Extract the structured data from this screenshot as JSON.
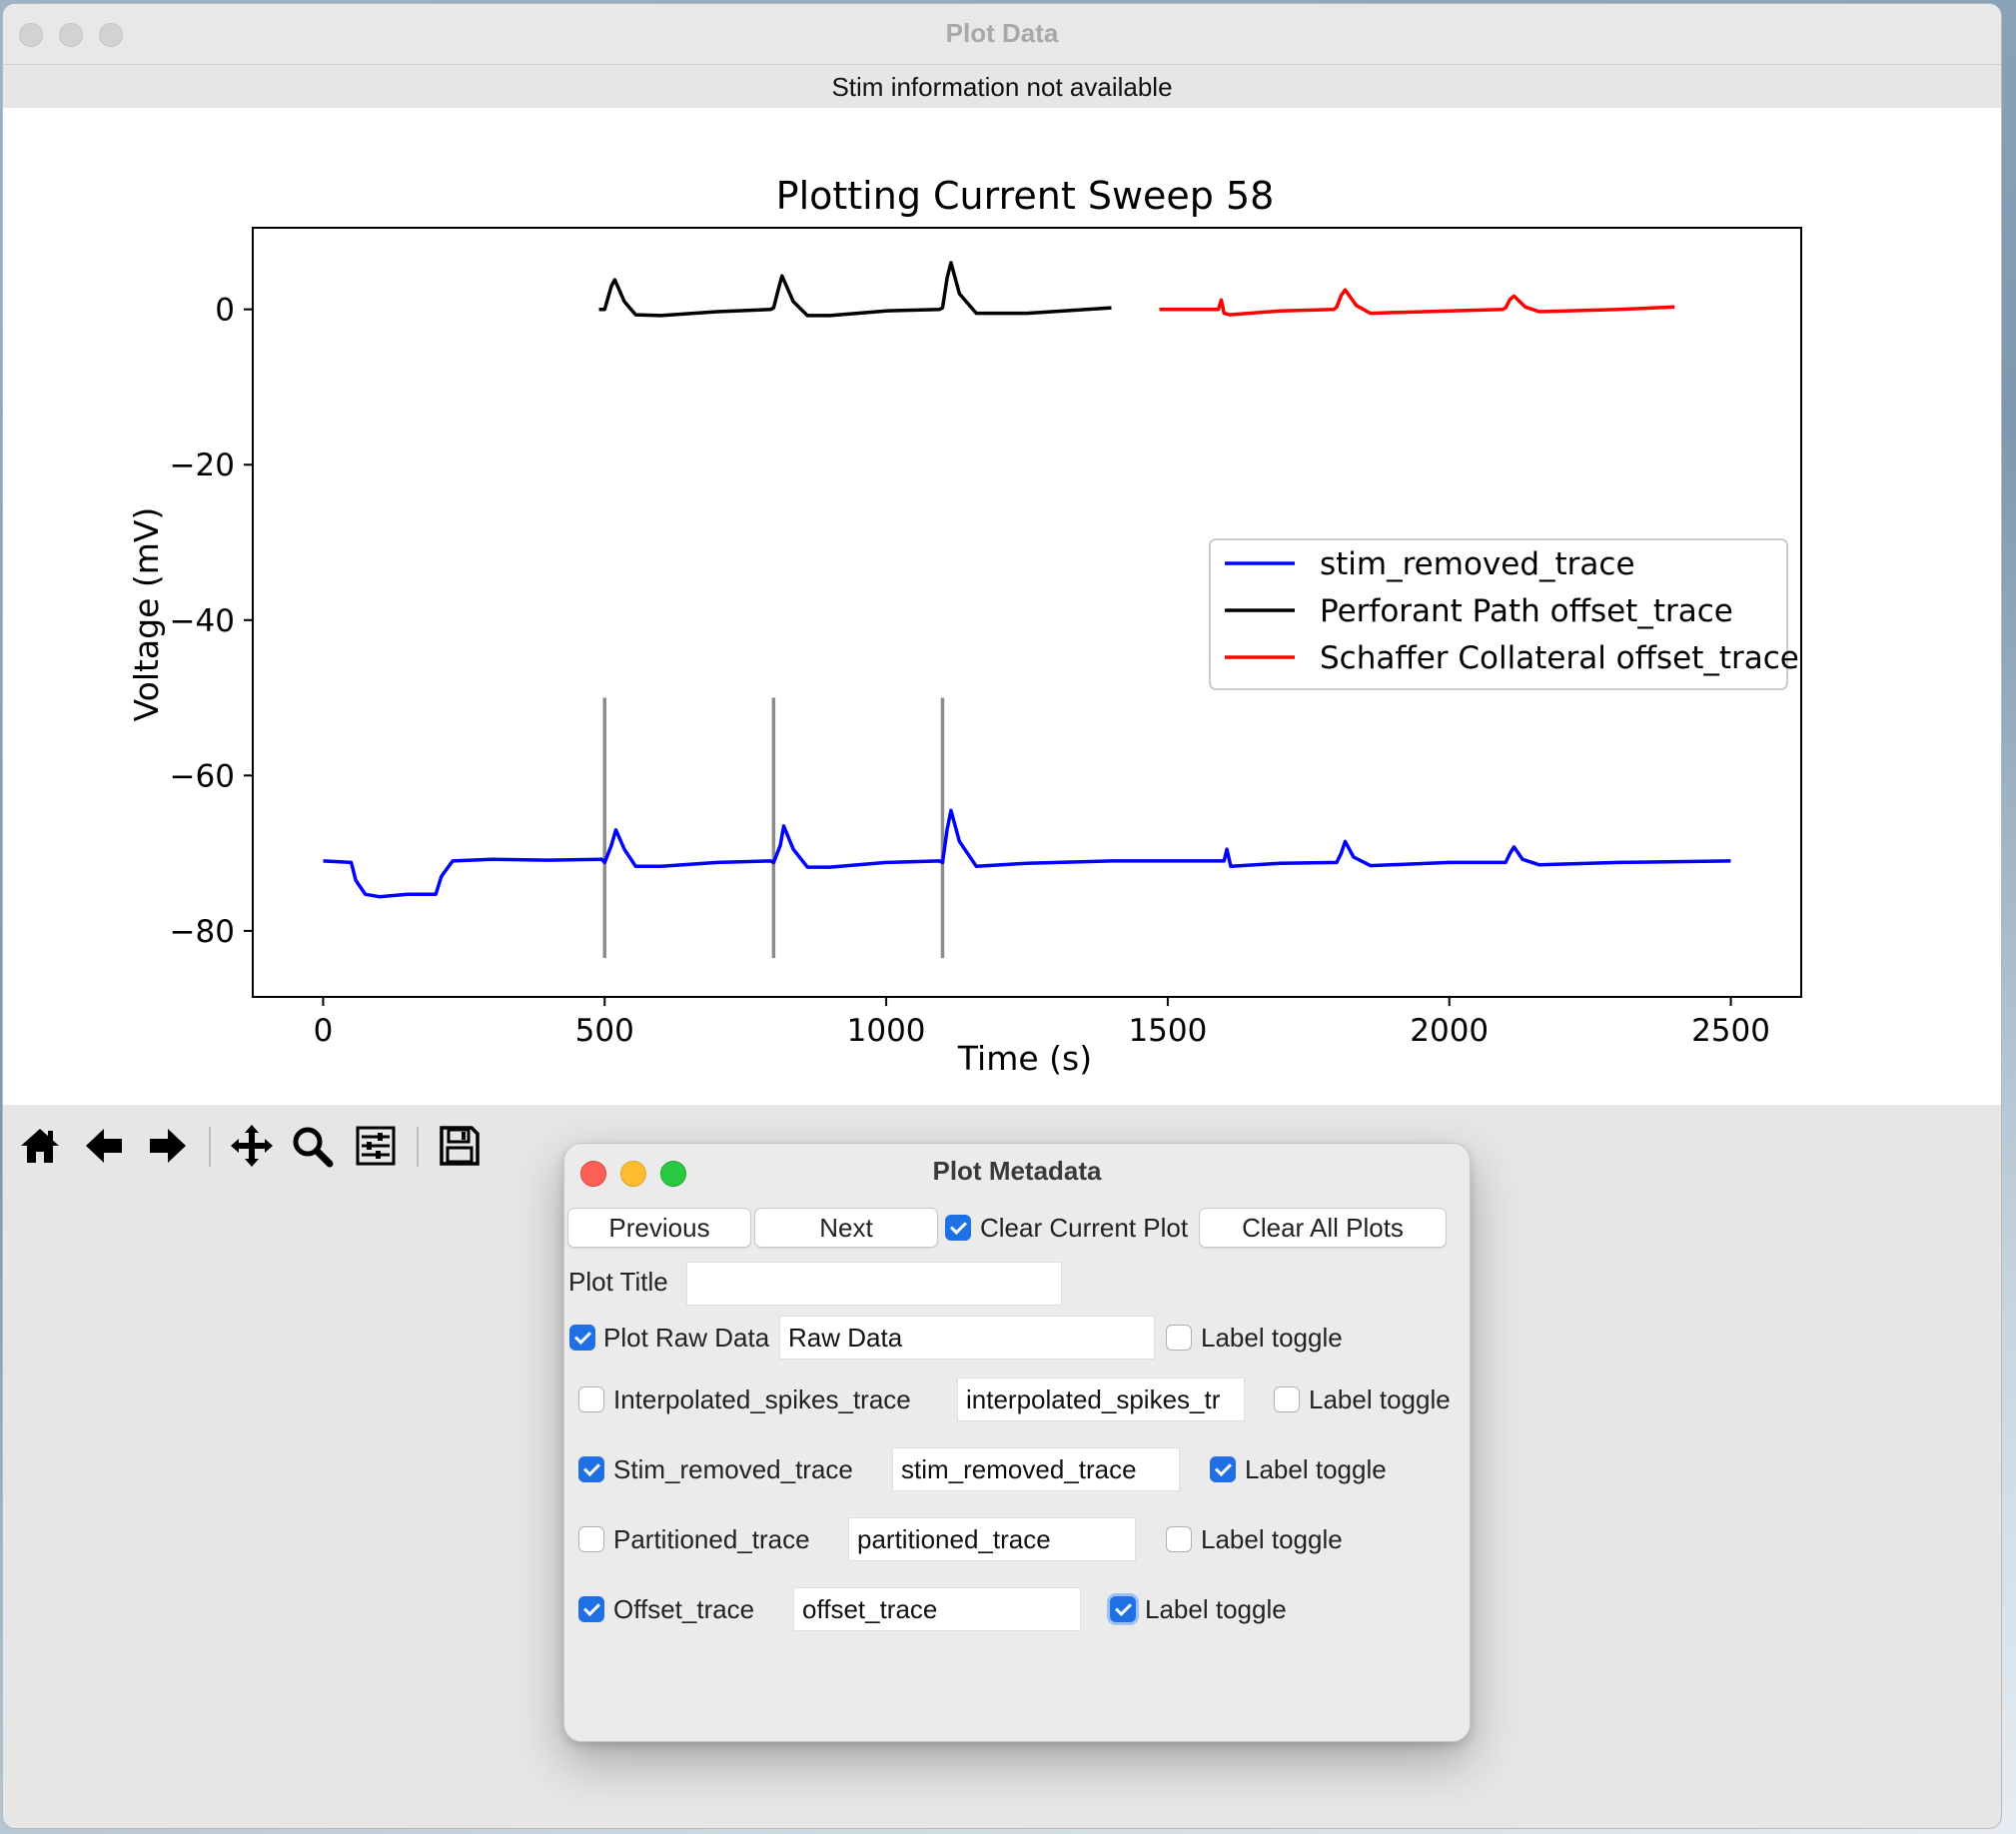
{
  "window": {
    "title": "Plot Data",
    "stim_info": "Stim information not available"
  },
  "chart_data": {
    "type": "line",
    "title": "Plotting Current Sweep 58",
    "xlabel": "Time (s)",
    "ylabel": "Voltage (mV)",
    "xlim": [
      -125,
      2625
    ],
    "ylim": [
      -88.5,
      10.5
    ],
    "xticks": [
      0,
      500,
      1000,
      1500,
      2000,
      2500
    ],
    "yticks": [
      0,
      -20,
      -40,
      -60,
      -80
    ],
    "legend_position": "center-right",
    "stim_artifacts": {
      "x": [
        500,
        800,
        1100
      ],
      "y_top": -50,
      "y_bottom": -83.5,
      "color": "#8c8c8c"
    },
    "series": [
      {
        "name": "stim_removed_trace",
        "color": "#0000ff",
        "points": [
          [
            0,
            -71
          ],
          [
            50,
            -71.2
          ],
          [
            58,
            -73.5
          ],
          [
            75,
            -75.3
          ],
          [
            100,
            -75.6
          ],
          [
            150,
            -75.3
          ],
          [
            200,
            -75.3
          ],
          [
            210,
            -73
          ],
          [
            230,
            -71
          ],
          [
            300,
            -70.8
          ],
          [
            400,
            -70.9
          ],
          [
            495,
            -70.8
          ],
          [
            500,
            -71.2
          ],
          [
            512,
            -69
          ],
          [
            520,
            -67
          ],
          [
            535,
            -69.5
          ],
          [
            555,
            -71.7
          ],
          [
            600,
            -71.7
          ],
          [
            700,
            -71.2
          ],
          [
            795,
            -71
          ],
          [
            800,
            -71.2
          ],
          [
            812,
            -69
          ],
          [
            818,
            -66.5
          ],
          [
            835,
            -69.5
          ],
          [
            860,
            -71.8
          ],
          [
            900,
            -71.8
          ],
          [
            1000,
            -71.2
          ],
          [
            1095,
            -71
          ],
          [
            1100,
            -71.2
          ],
          [
            1108,
            -67
          ],
          [
            1115,
            -64.5
          ],
          [
            1130,
            -68.5
          ],
          [
            1160,
            -71.7
          ],
          [
            1250,
            -71.3
          ],
          [
            1400,
            -71
          ],
          [
            1500,
            -71
          ],
          [
            1600,
            -71
          ],
          [
            1605,
            -69.5
          ],
          [
            1612,
            -71.7
          ],
          [
            1700,
            -71.3
          ],
          [
            1800,
            -71.2
          ],
          [
            1808,
            -70
          ],
          [
            1815,
            -68.5
          ],
          [
            1830,
            -70.5
          ],
          [
            1860,
            -71.6
          ],
          [
            2000,
            -71.2
          ],
          [
            2100,
            -71.2
          ],
          [
            2108,
            -70
          ],
          [
            2115,
            -69.2
          ],
          [
            2130,
            -70.8
          ],
          [
            2160,
            -71.5
          ],
          [
            2300,
            -71.2
          ],
          [
            2500,
            -71
          ]
        ]
      },
      {
        "name": "Perforant Path offset_trace",
        "color": "#000000",
        "points": [
          [
            490,
            0
          ],
          [
            500,
            0
          ],
          [
            512,
            3
          ],
          [
            518,
            3.8
          ],
          [
            535,
            1
          ],
          [
            555,
            -0.7
          ],
          [
            600,
            -0.8
          ],
          [
            700,
            -0.3
          ],
          [
            795,
            0
          ],
          [
            800,
            0.2
          ],
          [
            810,
            3
          ],
          [
            815,
            4.3
          ],
          [
            835,
            1
          ],
          [
            860,
            -0.8
          ],
          [
            900,
            -0.8
          ],
          [
            1000,
            -0.2
          ],
          [
            1095,
            0
          ],
          [
            1100,
            0.2
          ],
          [
            1108,
            4
          ],
          [
            1115,
            6
          ],
          [
            1130,
            2
          ],
          [
            1160,
            -0.5
          ],
          [
            1250,
            -0.5
          ],
          [
            1400,
            0.2
          ]
        ]
      },
      {
        "name": "Schaffer Collateral offset_trace",
        "color": "#ff0000",
        "points": [
          [
            1485,
            0
          ],
          [
            1590,
            0
          ],
          [
            1595,
            1.2
          ],
          [
            1600,
            -0.5
          ],
          [
            1610,
            -0.7
          ],
          [
            1700,
            -0.2
          ],
          [
            1795,
            0
          ],
          [
            1800,
            0.3
          ],
          [
            1808,
            1.8
          ],
          [
            1815,
            2.5
          ],
          [
            1835,
            0.5
          ],
          [
            1860,
            -0.5
          ],
          [
            2000,
            -0.2
          ],
          [
            2095,
            0
          ],
          [
            2100,
            0.2
          ],
          [
            2108,
            1.3
          ],
          [
            2115,
            1.7
          ],
          [
            2135,
            0.3
          ],
          [
            2160,
            -0.3
          ],
          [
            2300,
            0
          ],
          [
            2400,
            0.3
          ]
        ]
      }
    ]
  },
  "toolbar": {
    "icons": [
      "home-icon",
      "back-arrow-icon",
      "forward-arrow-icon",
      "pan-icon",
      "zoom-icon",
      "configure-subplots-icon",
      "save-icon"
    ]
  },
  "metadata_window": {
    "title": "Plot Metadata",
    "previous": "Previous",
    "next": "Next",
    "clear_current": "Clear Current Plot",
    "clear_current_checked": true,
    "clear_all": "Clear All Plots",
    "plot_title_label": "Plot Title",
    "plot_title_value": "",
    "label_toggle": "Label toggle",
    "rows": [
      {
        "label": "Plot Raw Data",
        "value": "Raw Data",
        "checked": true,
        "toggle_checked": false
      },
      {
        "label": "Interpolated_spikes_trace",
        "value": "interpolated_spikes_tr",
        "checked": false,
        "toggle_checked": false
      },
      {
        "label": "Stim_removed_trace",
        "value": "stim_removed_trace",
        "checked": true,
        "toggle_checked": true
      },
      {
        "label": "Partitioned_trace",
        "value": "partitioned_trace",
        "checked": false,
        "toggle_checked": false
      },
      {
        "label": "Offset_trace",
        "value": "offset_trace",
        "checked": true,
        "toggle_checked": true
      }
    ]
  }
}
